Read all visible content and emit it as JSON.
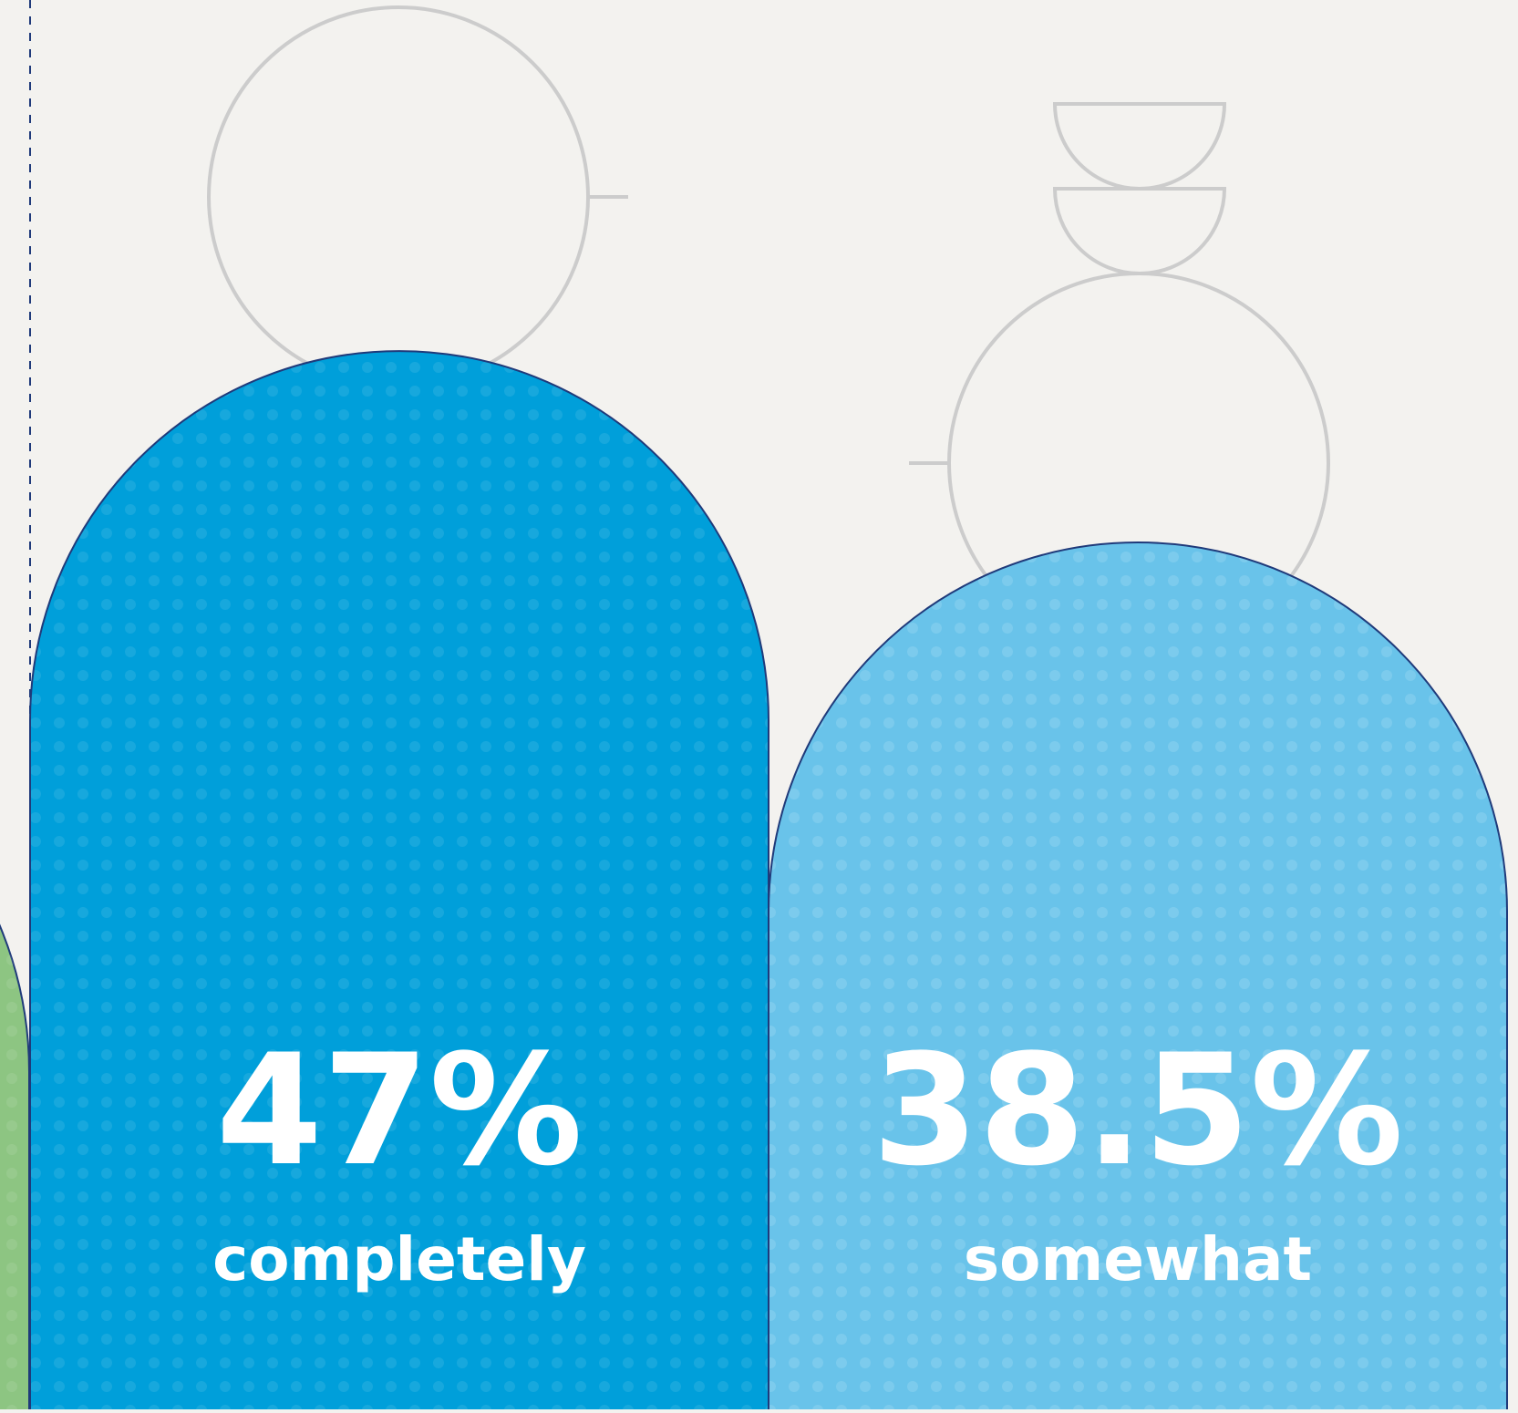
{
  "chart_data": {
    "type": "bar",
    "title": "",
    "xlabel": "",
    "ylabel": "",
    "unit": "%",
    "categories": [
      "completely",
      "somewhat"
    ],
    "values": [
      47,
      38.5
    ],
    "value_labels": [
      "47%",
      "38.5%"
    ],
    "grid": false,
    "legend": "none"
  },
  "colors": {
    "background": "#f3f2ef",
    "completely": "#009fda",
    "somewhat": "#69c3ea",
    "left_partial_bar": "#8dc582",
    "outline": "#1f3a7a",
    "figure_outline": "#cccccc"
  }
}
